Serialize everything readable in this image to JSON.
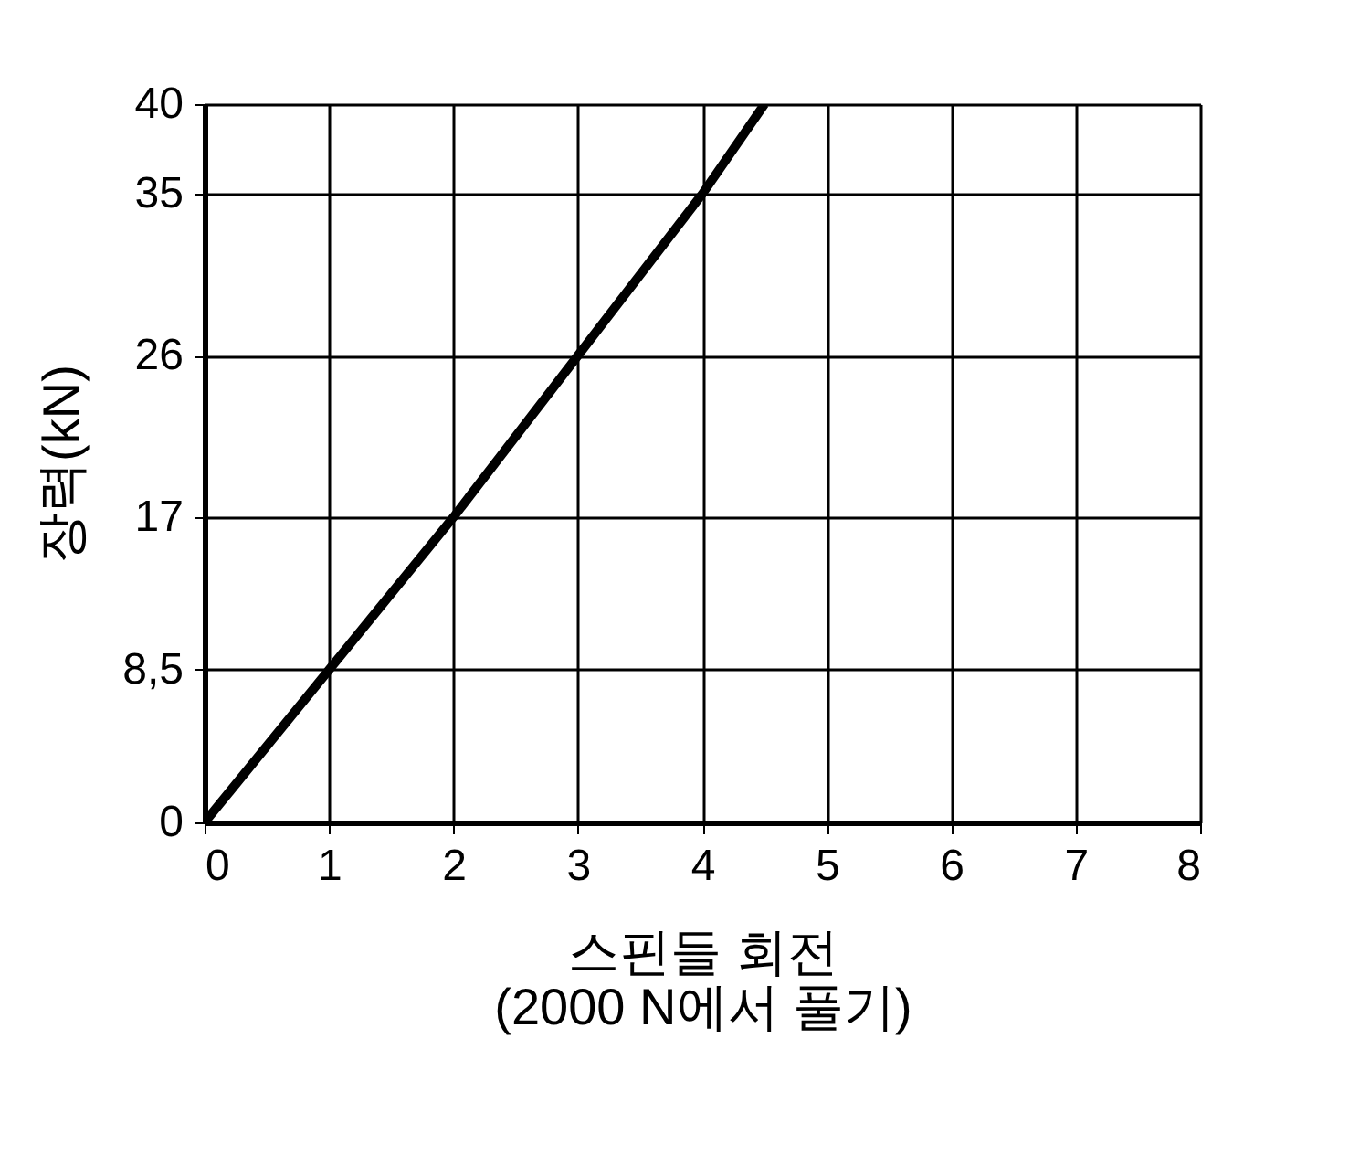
{
  "chart_data": {
    "type": "line",
    "xlabel": "스핀들 회전\n(2000 N에서 풀기)",
    "ylabel": "장력(kN)",
    "x": [
      0,
      1,
      2,
      3,
      4,
      4.5
    ],
    "series": [
      {
        "color": "#000000",
        "values": [
          0,
          8.5,
          17,
          26,
          35,
          40
        ]
      }
    ],
    "xlim": [
      0,
      8
    ],
    "xticks": [
      0,
      1,
      2,
      3,
      4,
      5,
      6,
      7,
      8
    ],
    "ylim": [
      0,
      40
    ],
    "yticks": [
      0,
      {
        "value": 8.5,
        "label": "8,5"
      },
      17,
      26,
      35,
      40
    ],
    "grid": true,
    "marker": "none",
    "line_style": "solid"
  }
}
